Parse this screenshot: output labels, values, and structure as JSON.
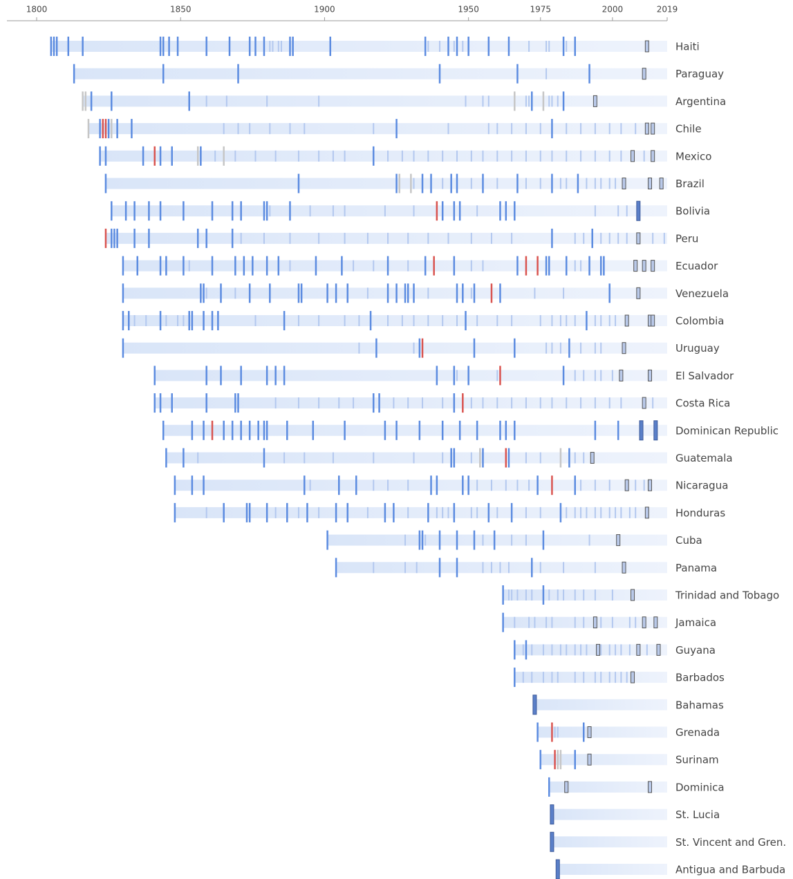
{
  "chart_data": {
    "type": "timeline",
    "xlim": [
      1800,
      2019
    ],
    "xticks": [
      1800,
      1850,
      1900,
      1950,
      1975,
      2000,
      2019
    ],
    "colors": {
      "strong": "#5b8be0",
      "light": "#b3c8ef",
      "red": "#d9534f",
      "gray": "#c6c6c6",
      "box": "#b9c9e9",
      "solid": "#5a7fc8"
    },
    "rows": [
      {
        "name": "Haiti",
        "start": 1805,
        "marks": {
          "strong": [
            1805,
            1806,
            1807,
            1811,
            1816,
            1843,
            1844,
            1846,
            1849,
            1859,
            1867,
            1874,
            1876,
            1879,
            1888,
            1889,
            1902,
            1935,
            1943,
            1946,
            1950,
            1957,
            1964,
            1983,
            1987
          ],
          "light": [
            1881,
            1882,
            1884,
            1885,
            1936,
            1940,
            1945,
            1948,
            1971,
            1977,
            1978,
            1984
          ],
          "box": [
            2012
          ]
        }
      },
      {
        "name": "Paraguay",
        "start": 1813,
        "marks": {
          "strong": [
            1813,
            1844,
            1870,
            1940,
            1967,
            1992
          ],
          "light": [
            1977
          ],
          "box": [
            2011
          ]
        }
      },
      {
        "name": "Argentina",
        "start": 1816,
        "marks": {
          "strong": [
            1819,
            1826,
            1853,
            1972,
            1983
          ],
          "light": [
            1859,
            1866,
            1880,
            1898,
            1949,
            1955,
            1957,
            1970,
            1971,
            1978,
            1979,
            1981
          ],
          "gray": [
            1816,
            1817,
            1966,
            1976
          ],
          "box": [
            1994
          ]
        }
      },
      {
        "name": "Chile",
        "start": 1818,
        "marks": {
          "strong": [
            1822,
            1825,
            1828,
            1833,
            1925,
            1979
          ],
          "red": [
            1823,
            1824
          ],
          "gray": [
            1818,
            1826
          ],
          "light": [
            1865,
            1870,
            1874,
            1881,
            1888,
            1893,
            1917,
            1943,
            1957,
            1960,
            1965,
            1970,
            1975,
            1984,
            1989,
            1994,
            1999,
            2003,
            2008
          ],
          "box": [
            2012,
            2014
          ]
        }
      },
      {
        "name": "Mexico",
        "start": 1822,
        "marks": {
          "strong": [
            1822,
            1824,
            1837,
            1843,
            1847,
            1857,
            1917
          ],
          "red": [
            1841
          ],
          "gray": [
            1856,
            1865
          ],
          "light": [
            1862,
            1869,
            1876,
            1883,
            1891,
            1898,
            1903,
            1907,
            1922,
            1927,
            1931,
            1936,
            1941,
            1946,
            1951,
            1955,
            1960,
            1965,
            1970,
            1975,
            1979,
            1984,
            1989,
            1994,
            1999,
            2003,
            2011
          ],
          "box": [
            2007,
            2014
          ]
        }
      },
      {
        "name": "Brazil",
        "start": 1824,
        "marks": {
          "strong": [
            1824,
            1891,
            1925,
            1934,
            1937,
            1944,
            1946,
            1955,
            1967,
            1979,
            1988
          ],
          "gray": [
            1926,
            1930
          ],
          "light": [
            1931,
            1941,
            1951,
            1960,
            1970,
            1975,
            1982,
            1984,
            1991,
            1994,
            1996,
            1999,
            2001
          ],
          "box": [
            2004,
            2013,
            2017
          ]
        }
      },
      {
        "name": "Bolivia",
        "start": 1826,
        "marks": {
          "strong": [
            1826,
            1831,
            1834,
            1839,
            1843,
            1851,
            1861,
            1868,
            1871,
            1879,
            1880,
            1888,
            1941,
            1945,
            1947,
            1961,
            1963,
            1966
          ],
          "red": [
            1939
          ],
          "light": [
            1881,
            1895,
            1903,
            1907,
            1921,
            1931,
            1953,
            1994,
            2002,
            2005
          ],
          "solid": [
            2009
          ]
        }
      },
      {
        "name": "Peru",
        "start": 1824,
        "marks": {
          "strong": [
            1826,
            1827,
            1828,
            1834,
            1839,
            1856,
            1859,
            1868,
            1979,
            1993
          ],
          "red": [
            1824
          ],
          "light": [
            1871,
            1879,
            1888,
            1898,
            1907,
            1915,
            1922,
            1929,
            1936,
            1943,
            1951,
            1958,
            1965,
            1987,
            1990,
            1996,
            1999,
            2002,
            2005,
            2014,
            2018
          ],
          "box": [
            2009
          ]
        }
      },
      {
        "name": "Ecuador",
        "start": 1830,
        "marks": {
          "strong": [
            1830,
            1835,
            1843,
            1845,
            1851,
            1861,
            1869,
            1872,
            1875,
            1880,
            1884,
            1897,
            1906,
            1922,
            1935,
            1945,
            1967,
            1977,
            1978,
            1984,
            1992,
            1996,
            1997
          ],
          "red": [
            1938,
            1970,
            1974
          ],
          "light": [
            1853,
            1888,
            1910,
            1917,
            1929,
            1951,
            1955,
            1987,
            1989
          ],
          "box": [
            2008,
            2011,
            2014
          ]
        }
      },
      {
        "name": "Venezuela",
        "start": 1830,
        "marks": {
          "strong": [
            1830,
            1857,
            1858,
            1864,
            1874,
            1881,
            1891,
            1892,
            1901,
            1904,
            1908,
            1922,
            1925,
            1928,
            1929,
            1931,
            1946,
            1948,
            1952,
            1961,
            1999
          ],
          "red": [
            1958
          ],
          "light": [
            1859,
            1869,
            1915,
            1936,
            1951,
            1973,
            1983
          ],
          "box": [
            2009
          ]
        }
      },
      {
        "name": "Colombia",
        "start": 1830,
        "marks": {
          "strong": [
            1830,
            1832,
            1843,
            1853,
            1854,
            1858,
            1861,
            1863,
            1886,
            1916,
            1949,
            1991
          ],
          "light": [
            1834,
            1838,
            1845,
            1849,
            1851,
            1876,
            1891,
            1898,
            1907,
            1912,
            1922,
            1927,
            1931,
            1936,
            1941,
            1946,
            1953,
            1960,
            1965,
            1975,
            1979,
            1982,
            1984,
            1987,
            1994,
            1996,
            1999,
            2001
          ],
          "box": [
            2005,
            2013,
            2014
          ]
        }
      },
      {
        "name": "Uruguay",
        "start": 1830,
        "marks": {
          "strong": [
            1830,
            1918,
            1933,
            1952,
            1966,
            1985
          ],
          "red": [
            1934
          ],
          "light": [
            1912,
            1931,
            1977,
            1979,
            1982,
            1989,
            1994,
            1996
          ],
          "box": [
            2004
          ]
        }
      },
      {
        "name": "El Salvador",
        "start": 1841,
        "marks": {
          "strong": [
            1841,
            1859,
            1864,
            1871,
            1880,
            1883,
            1886,
            1939,
            1945,
            1950,
            1983
          ],
          "red": [
            1961
          ],
          "light": [
            1946,
            1960,
            1987,
            1990,
            1994,
            1996,
            2000
          ],
          "box": [
            2003,
            2013
          ]
        }
      },
      {
        "name": "Costa Rica",
        "start": 1841,
        "marks": {
          "strong": [
            1841,
            1843,
            1847,
            1859,
            1869,
            1870,
            1917,
            1919,
            1945
          ],
          "red": [
            1948
          ],
          "light": [
            1883,
            1891,
            1898,
            1905,
            1910,
            1924,
            1929,
            1934,
            1941,
            1951,
            1955,
            1960,
            1965,
            1970,
            1975,
            1979,
            1984,
            1989,
            1994,
            1999,
            2003,
            2014
          ],
          "box": [
            2011
          ]
        }
      },
      {
        "name": "Dominican Republic",
        "start": 1844,
        "marks": {
          "strong": [
            1844,
            1854,
            1858,
            1865,
            1868,
            1871,
            1874,
            1877,
            1879,
            1880,
            1887,
            1896,
            1907,
            1921,
            1925,
            1933,
            1941,
            1947,
            1953,
            1961,
            1963,
            1966,
            1994,
            2002
          ],
          "red": [
            1861
          ],
          "solid": [
            2010,
            2015
          ]
        }
      },
      {
        "name": "Guatemala",
        "start": 1845,
        "marks": {
          "strong": [
            1845,
            1851,
            1879,
            1944,
            1945,
            1955,
            1964,
            1985
          ],
          "red": [
            1963
          ],
          "gray": [
            1954,
            1982
          ],
          "light": [
            1856,
            1886,
            1893,
            1903,
            1917,
            1931,
            1941,
            1951,
            1970,
            1975,
            1987,
            1990
          ],
          "box": [
            1993
          ]
        }
      },
      {
        "name": "Nicaragua",
        "start": 1848,
        "marks": {
          "strong": [
            1848,
            1854,
            1858,
            1893,
            1905,
            1911,
            1937,
            1939,
            1948,
            1950,
            1974,
            1987
          ],
          "red": [
            1979
          ],
          "light": [
            1895,
            1917,
            1922,
            1929,
            1953,
            1958,
            1963,
            1967,
            1971,
            1989,
            1994,
            1999,
            2008,
            2011
          ],
          "box": [
            2005,
            2013
          ]
        }
      },
      {
        "name": "Honduras",
        "start": 1848,
        "marks": {
          "strong": [
            1848,
            1865,
            1873,
            1874,
            1880,
            1887,
            1894,
            1904,
            1908,
            1921,
            1924,
            1936,
            1945,
            1957,
            1965,
            1982
          ],
          "light": [
            1859,
            1883,
            1891,
            1898,
            1915,
            1929,
            1939,
            1941,
            1943,
            1951,
            1953,
            1960,
            1970,
            1975,
            1984,
            1987,
            1989,
            1991,
            1994,
            1996,
            1999,
            2001,
            2003,
            2006,
            2008
          ],
          "box": [
            2012
          ]
        }
      },
      {
        "name": "Cuba",
        "start": 1901,
        "marks": {
          "strong": [
            1901,
            1933,
            1934,
            1940,
            1946,
            1952,
            1959,
            1976
          ],
          "light": [
            1928,
            1935,
            1955,
            1965,
            1970,
            1992
          ],
          "box": [
            2002
          ]
        }
      },
      {
        "name": "Panama",
        "start": 1904,
        "marks": {
          "strong": [
            1904,
            1940,
            1946,
            1972
          ],
          "light": [
            1917,
            1928,
            1932,
            1955,
            1958,
            1961,
            1964,
            1975,
            1983,
            1994
          ],
          "box": [
            2004
          ]
        }
      },
      {
        "name": "Trinidad and Tobago",
        "start": 1962,
        "marks": {
          "strong": [
            1962,
            1976
          ],
          "light": [
            1964,
            1965,
            1967,
            1970,
            1972,
            1978,
            1981,
            1983,
            1987,
            1990,
            1994,
            2000
          ],
          "box": [
            2007
          ]
        }
      },
      {
        "name": "Jamaica",
        "start": 1962,
        "marks": {
          "strong": [
            1962
          ],
          "light": [
            1966,
            1971,
            1973,
            1977,
            1979,
            1987,
            1990,
            1996,
            2000,
            2006,
            2008
          ],
          "box": [
            1994,
            2011,
            2015
          ]
        }
      },
      {
        "name": "Guyana",
        "start": 1966,
        "marks": {
          "strong": [
            1966,
            1970
          ],
          "light": [
            1969,
            1972,
            1976,
            1979,
            1982,
            1984,
            1987,
            1989,
            1991,
            1996,
            1999,
            2001,
            2003,
            2006,
            2012
          ],
          "box": [
            1995,
            2009,
            2016
          ]
        }
      },
      {
        "name": "Barbados",
        "start": 1966,
        "marks": {
          "strong": [
            1966
          ],
          "light": [
            1969,
            1972,
            1976,
            1979,
            1981,
            1987,
            1990,
            1994,
            1996,
            1999,
            2001,
            2003,
            2005
          ],
          "box": [
            2007
          ]
        }
      },
      {
        "name": "Bahamas",
        "start": 1973,
        "marks": {
          "solid": [
            1973
          ]
        }
      },
      {
        "name": "Grenada",
        "start": 1974,
        "marks": {
          "strong": [
            1974,
            1990
          ],
          "red": [
            1979
          ],
          "light": [
            1980,
            1981
          ],
          "box": [
            1992
          ]
        }
      },
      {
        "name": "Surinam",
        "start": 1975,
        "marks": {
          "strong": [
            1975,
            1987
          ],
          "red": [
            1980
          ],
          "gray": [
            1981,
            1982
          ],
          "box": [
            1992
          ]
        }
      },
      {
        "name": "Dominica",
        "start": 1978,
        "marks": {
          "strong": [
            1978
          ],
          "box": [
            1984,
            2013
          ]
        }
      },
      {
        "name": "St. Lucia",
        "start": 1979,
        "marks": {
          "solid": [
            1979
          ]
        }
      },
      {
        "name": "St. Vincent and Gren.",
        "start": 1979,
        "marks": {
          "solid": [
            1979
          ]
        }
      },
      {
        "name": "Antigua and Barbuda",
        "start": 1981,
        "marks": {
          "solid": [
            1981
          ]
        }
      }
    ]
  }
}
